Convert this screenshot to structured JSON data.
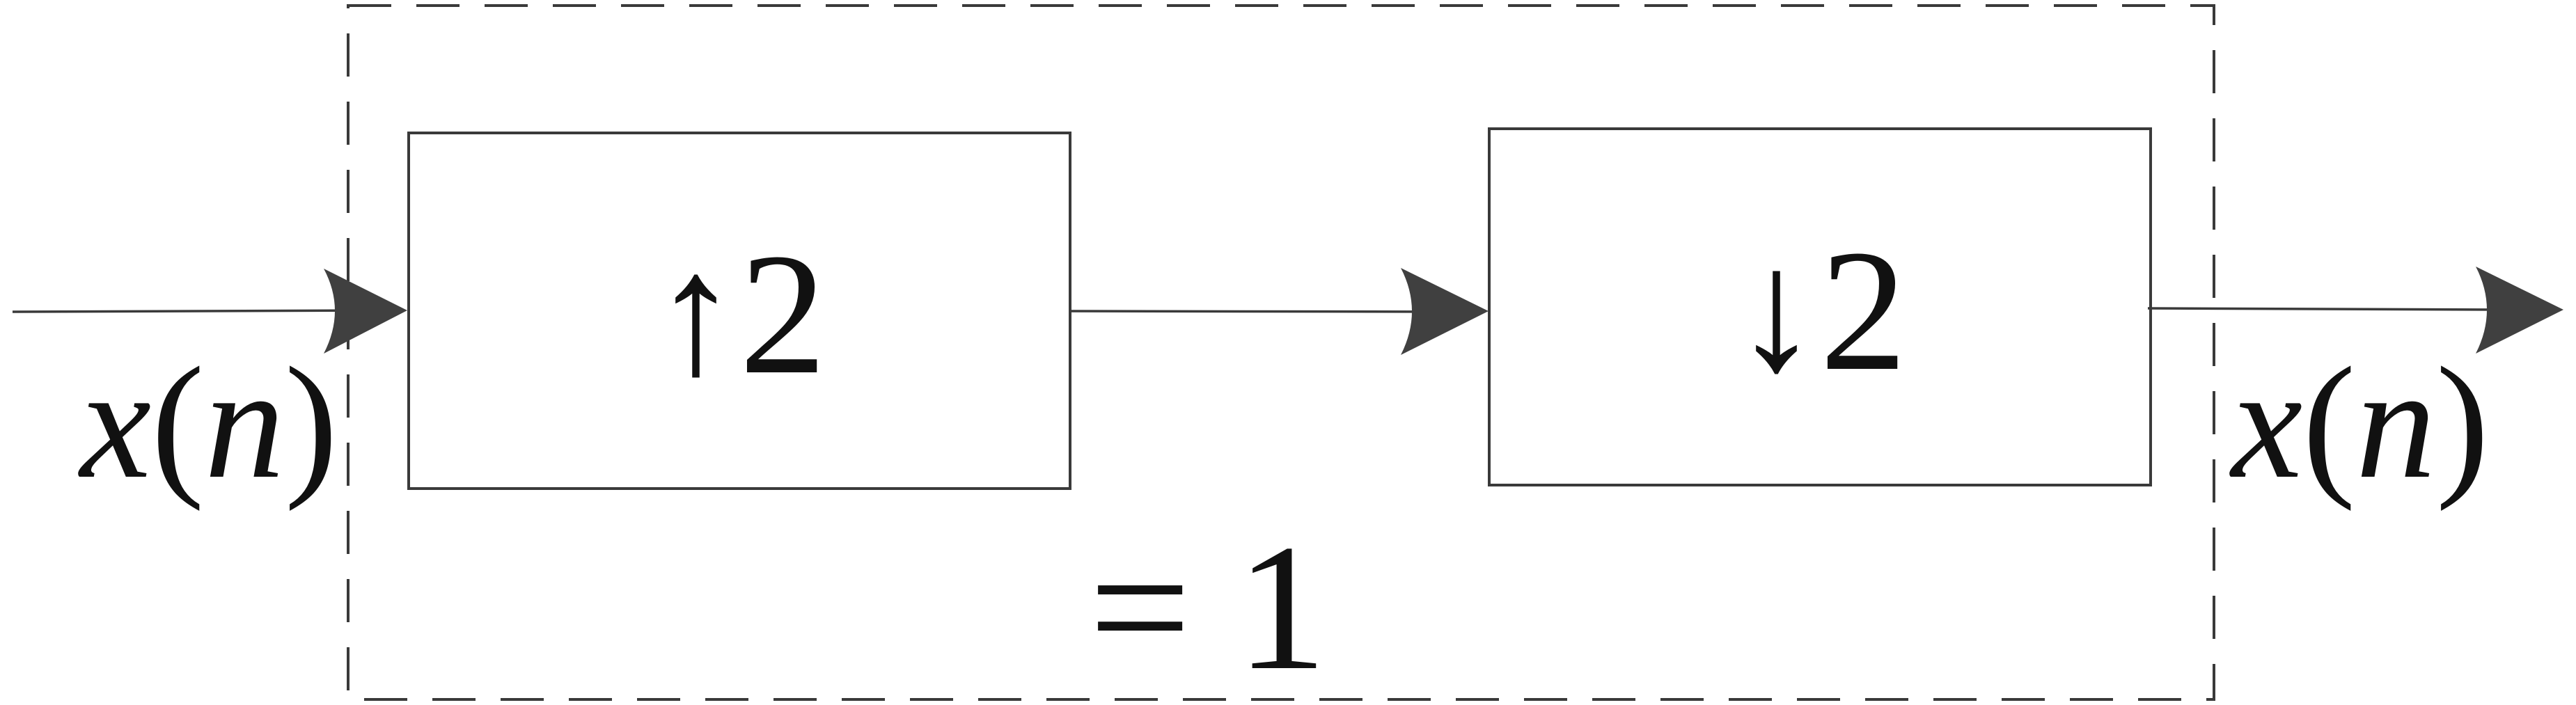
{
  "diagram": {
    "input_signal": {
      "var": "x",
      "open": "(",
      "arg": "n",
      "close": ")"
    },
    "output_signal": {
      "var": "x",
      "open": "(",
      "arg": "n",
      "close": ")"
    },
    "blocks": [
      {
        "label": "↑2"
      },
      {
        "label": "↓2"
      }
    ],
    "result": "= 1",
    "colors": {
      "stroke": "#3a3a3a",
      "arrowhead": "#404040",
      "text": "#111111"
    }
  }
}
